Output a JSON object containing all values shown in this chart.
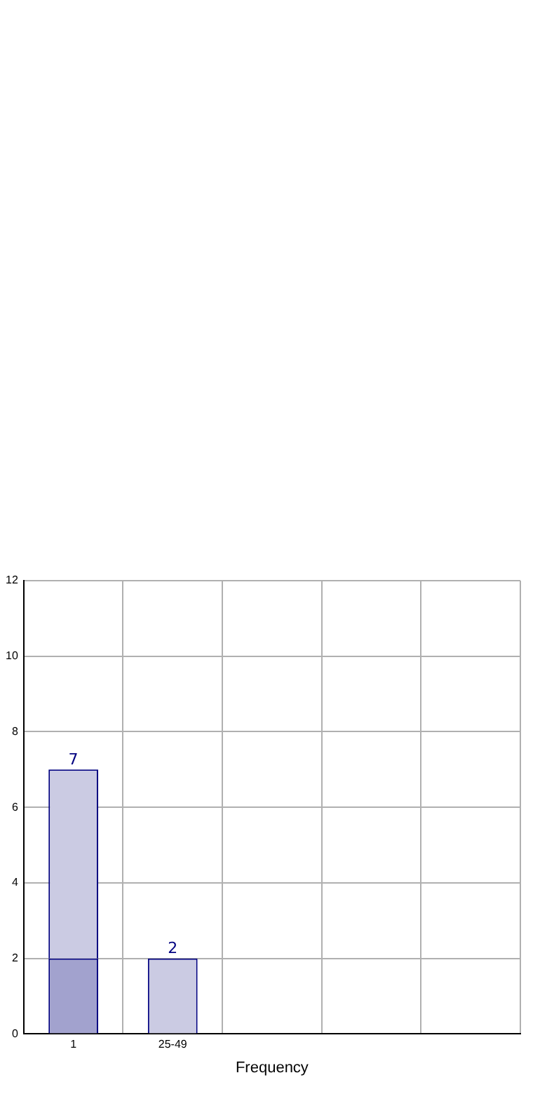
{
  "chart_data": {
    "type": "bar",
    "xlabel": "Frequency",
    "categories": [
      "1",
      "25-49",
      null,
      null,
      null
    ],
    "stacked": true,
    "series": [
      {
        "color": "#a2a2ce",
        "values": [
          2,
          0,
          null,
          null,
          null
        ]
      },
      {
        "color": "#cbcbe3",
        "values": [
          5,
          2,
          null,
          null,
          null
        ]
      }
    ],
    "totals": [
      "7",
      "2",
      null,
      null,
      null
    ],
    "ylim": [
      0,
      12
    ],
    "yticks": [
      0,
      2,
      4,
      6,
      8,
      10,
      12
    ],
    "grid": true,
    "legend": false
  }
}
